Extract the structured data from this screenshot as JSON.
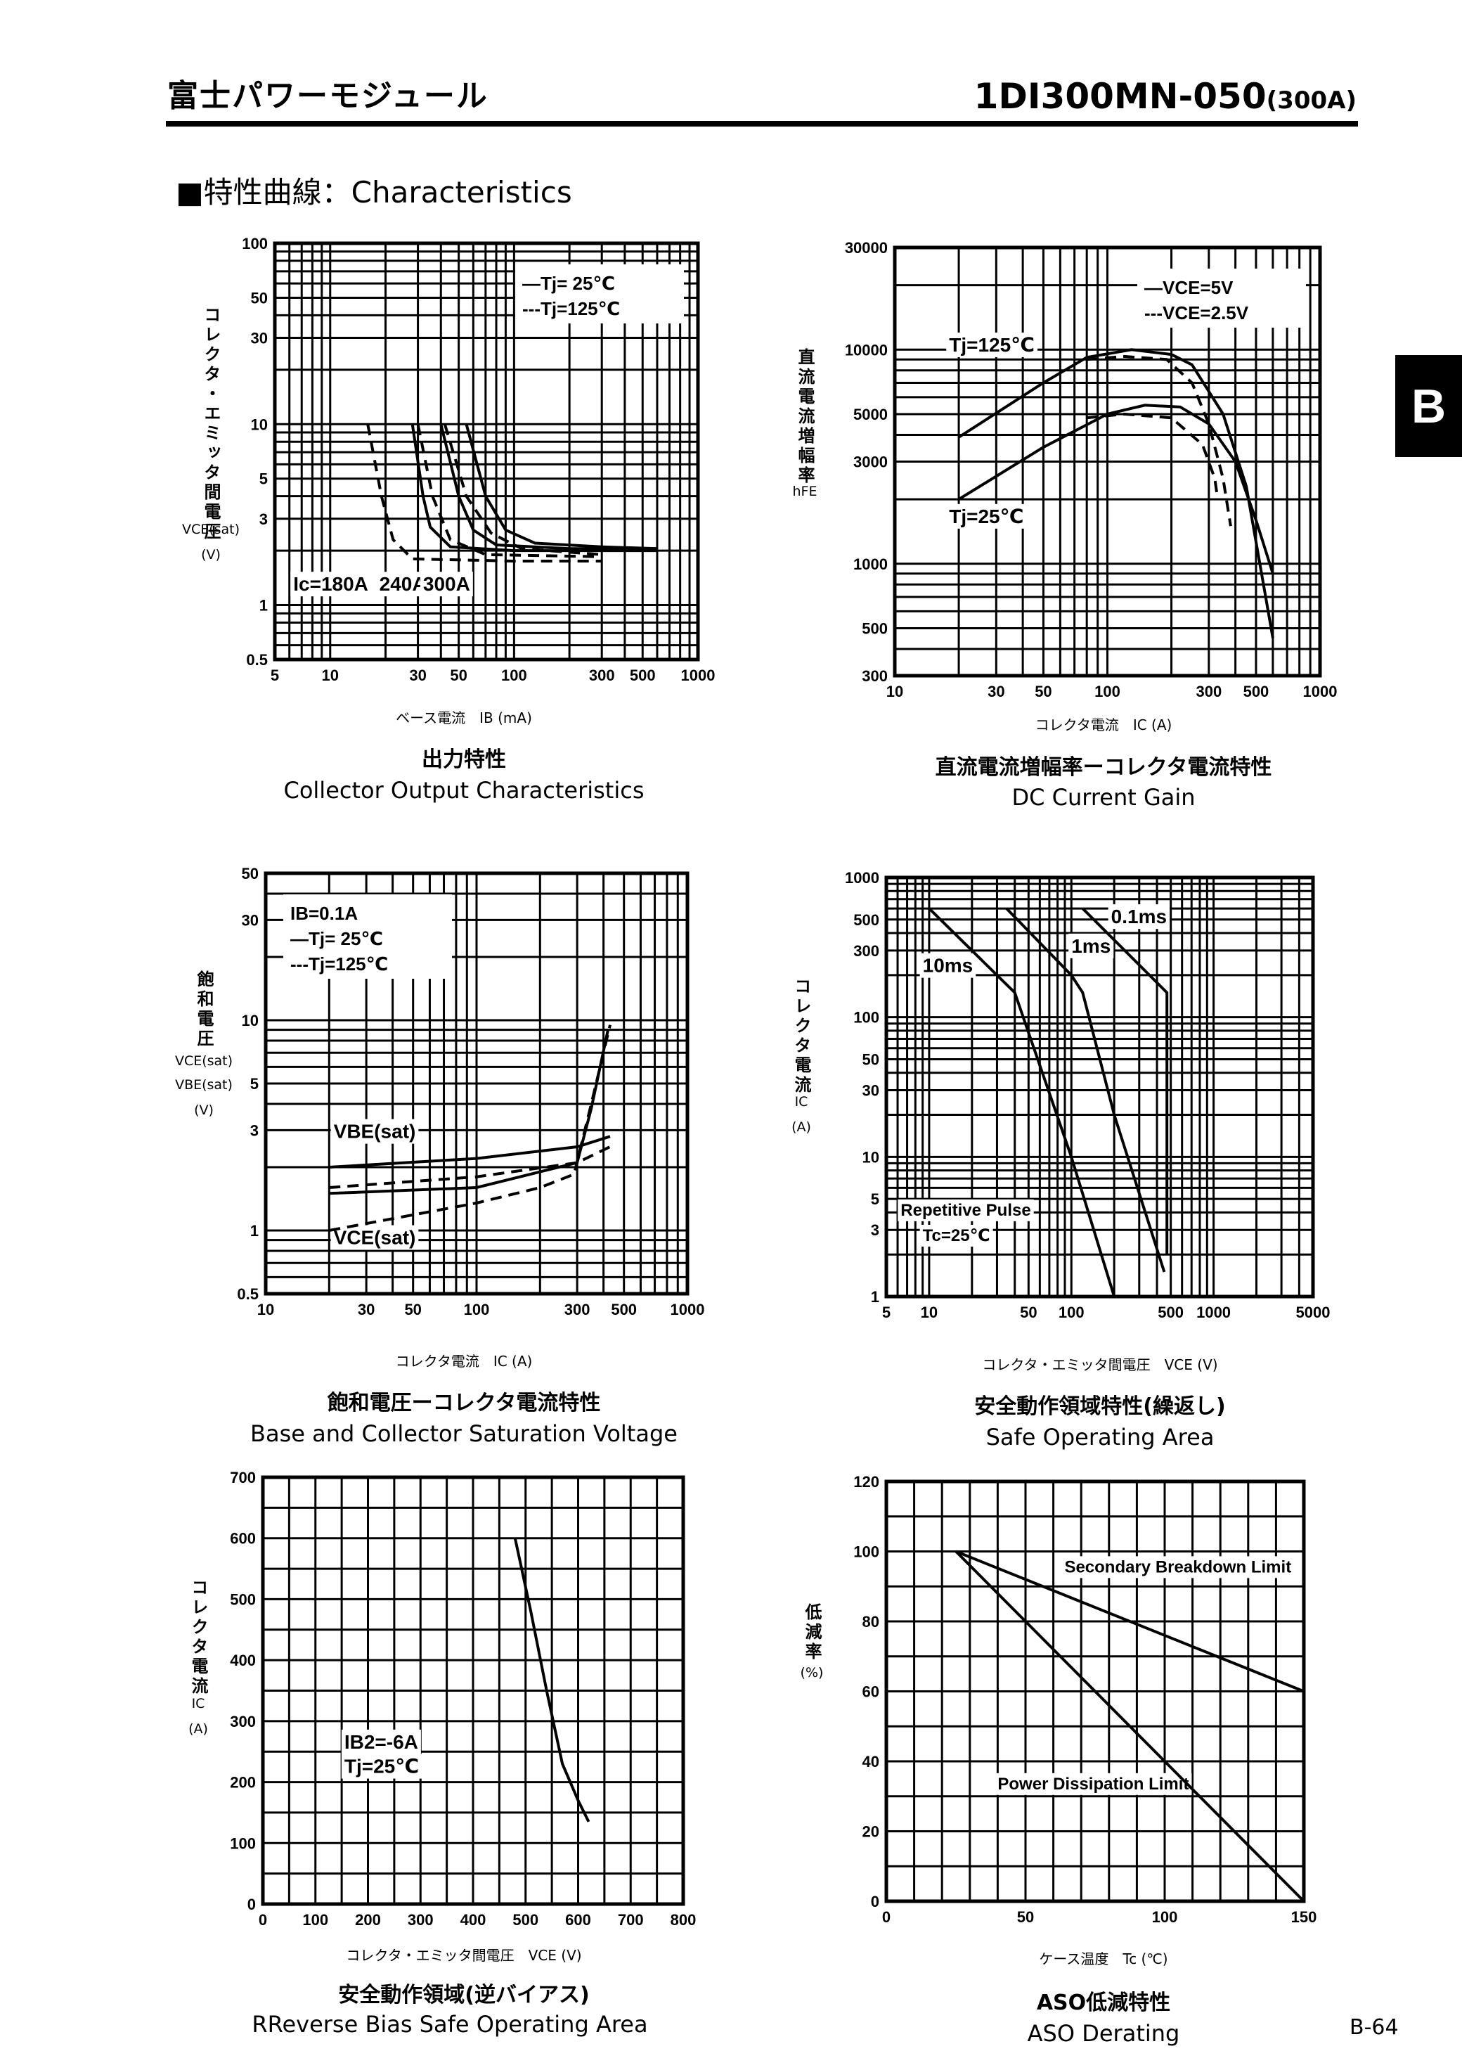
{
  "header": {
    "brand": "富士パワーモジュール",
    "model": "1DI300MN-050",
    "rating": "(300A)"
  },
  "section_title": "■特性曲線：Characteristics",
  "side_tab": "B",
  "page_number": "B-64",
  "chart_data": [
    {
      "type": "line",
      "title_jp": "出力特性",
      "title": "Collector Output Characteristics",
      "xlabel": "ベース電流　IB (mA)",
      "ylabel_jp": "コレクタ・エミッタ間電圧",
      "ylabel_sym": "VCE(sat)",
      "ylabel_unit": "(V)",
      "xscale": "log",
      "yscale": "log",
      "xlim": [
        5,
        1000
      ],
      "ylim": [
        0.5,
        100
      ],
      "grid": true,
      "xticks": [
        5,
        10,
        30,
        50,
        100,
        300,
        500,
        1000
      ],
      "yticks": [
        0.5,
        1,
        3,
        5,
        10,
        30,
        50,
        100
      ],
      "legend": [
        "—Tj= 25℃",
        "---Tj=125℃"
      ],
      "legend_placement": "top-right",
      "annotations": [
        {
          "text": "Ic=180A",
          "x": 6.3,
          "y": 1.2
        },
        {
          "text": "240A",
          "x": 18.5,
          "y": 1.2
        },
        {
          "text": "300A",
          "x": 32,
          "y": 1.2
        }
      ],
      "series": [
        {
          "label": "Ic=180A Tj=25℃",
          "dash": false,
          "points": [
            [
              28,
              10
            ],
            [
              32,
              4
            ],
            [
              35,
              2.7
            ],
            [
              45,
              2.1
            ],
            [
              100,
              2.0
            ],
            [
              600,
              2.0
            ]
          ]
        },
        {
          "label": "Ic=180A Tj=125℃",
          "dash": true,
          "points": [
            [
              16,
              10
            ],
            [
              19,
              4
            ],
            [
              22,
              2.3
            ],
            [
              28,
              1.8
            ],
            [
              100,
              1.75
            ],
            [
              300,
              1.75
            ]
          ]
        },
        {
          "label": "Ic=240A Tj=25℃",
          "dash": false,
          "points": [
            [
              40,
              10
            ],
            [
              50,
              4
            ],
            [
              60,
              2.6
            ],
            [
              80,
              2.15
            ],
            [
              200,
              2.05
            ],
            [
              600,
              2.05
            ]
          ]
        },
        {
          "label": "Ic=240A Tj=125℃",
          "dash": true,
          "points": [
            [
              30,
              10
            ],
            [
              36,
              4
            ],
            [
              45,
              2.3
            ],
            [
              70,
              1.9
            ],
            [
              300,
              1.85
            ]
          ]
        },
        {
          "label": "Ic=300A Tj=25℃",
          "dash": false,
          "points": [
            [
              55,
              10
            ],
            [
              70,
              4
            ],
            [
              90,
              2.6
            ],
            [
              130,
              2.2
            ],
            [
              300,
              2.1
            ],
            [
              600,
              2.05
            ]
          ]
        },
        {
          "label": "Ic=300A Tj=125℃",
          "dash": true,
          "points": [
            [
              42,
              10
            ],
            [
              55,
              4
            ],
            [
              75,
              2.5
            ],
            [
              110,
              2.05
            ],
            [
              300,
              1.9
            ]
          ]
        }
      ]
    },
    {
      "type": "line",
      "title_jp": "直流電流増幅率ーコレクタ電流特性",
      "title": "DC Current Gain",
      "xlabel": "コレクタ電流　IC (A)",
      "ylabel_jp": "直流電流増幅率",
      "ylabel_sym": "hFE",
      "ylabel_unit": "",
      "xscale": "log",
      "yscale": "log",
      "xlim": [
        10,
        1000
      ],
      "ylim": [
        300,
        30000
      ],
      "grid": true,
      "xticks": [
        10,
        30,
        50,
        100,
        300,
        500,
        1000
      ],
      "yticks": [
        300,
        500,
        1000,
        3000,
        5000,
        10000,
        30000
      ],
      "legend": [
        "—VCE=5V",
        "---VCE=2.5V"
      ],
      "legend_placement": "top-right",
      "annotations": [
        {
          "text": "Tj=125℃",
          "x": 18,
          "y": 9800
        },
        {
          "text": "Tj=25℃",
          "x": 18,
          "y": 1550
        }
      ],
      "series": [
        {
          "label": "Tj=125℃ VCE=5V",
          "dash": false,
          "points": [
            [
              20,
              3900
            ],
            [
              50,
              7000
            ],
            [
              80,
              9200
            ],
            [
              130,
              10000
            ],
            [
              200,
              9500
            ],
            [
              250,
              8500
            ],
            [
              350,
              5000
            ],
            [
              450,
              2300
            ],
            [
              600,
              450
            ]
          ]
        },
        {
          "label": "Tj=125℃ VCE=2.5V",
          "dash": true,
          "points": [
            [
              80,
              9000
            ],
            [
              120,
              9300
            ],
            [
              190,
              9000
            ],
            [
              250,
              7000
            ],
            [
              300,
              4500
            ],
            [
              350,
              2500
            ],
            [
              380,
              1500
            ]
          ]
        },
        {
          "label": "Tj=25℃ VCE=5V",
          "dash": false,
          "points": [
            [
              20,
              2000
            ],
            [
              50,
              3500
            ],
            [
              100,
              5000
            ],
            [
              150,
              5500
            ],
            [
              220,
              5400
            ],
            [
              300,
              4500
            ],
            [
              400,
              3000
            ],
            [
              500,
              1600
            ],
            [
              600,
              900
            ]
          ]
        },
        {
          "label": "Tj=25℃ VCE=2.5V",
          "dash": true,
          "points": [
            [
              80,
              4800
            ],
            [
              120,
              5000
            ],
            [
              200,
              4800
            ],
            [
              280,
              3600
            ],
            [
              320,
              2500
            ],
            [
              330,
              2000
            ]
          ]
        }
      ]
    },
    {
      "type": "line",
      "title_jp": "飽和電圧ーコレクタ電流特性",
      "title": "Base and Collector Saturation Voltage",
      "xlabel": "コレクタ電流　IC (A)",
      "ylabel_jp": "飽和電圧",
      "ylabel_sym": "VCE(sat)",
      "ylabel_sym2": "VBE(sat)",
      "ylabel_unit": "(V)",
      "xscale": "log",
      "yscale": "log",
      "xlim": [
        10,
        1000
      ],
      "ylim": [
        0.5,
        50
      ],
      "grid": true,
      "xticks": [
        10,
        30,
        50,
        100,
        300,
        500,
        1000
      ],
      "yticks": [
        0.5,
        1,
        3,
        5,
        10,
        30,
        50
      ],
      "legend": [
        "IB=0.1A",
        "—Tj= 25℃",
        "---Tj=125℃"
      ],
      "legend_placement": "top-left",
      "annotations": [
        {
          "text": "VBE(sat)",
          "x": 21,
          "y": 2.75
        },
        {
          "text": "VCE(sat)",
          "x": 21,
          "y": 0.86
        }
      ],
      "series": [
        {
          "label": "VBE(sat) Tj=25℃",
          "dash": false,
          "points": [
            [
              20,
              2.0
            ],
            [
              100,
              2.2
            ],
            [
              300,
              2.5
            ],
            [
              430,
              2.8
            ]
          ]
        },
        {
          "label": "VBE(sat) Tj=125℃",
          "dash": true,
          "points": [
            [
              20,
              1.6
            ],
            [
              100,
              1.8
            ],
            [
              300,
              2.1
            ],
            [
              430,
              2.5
            ]
          ]
        },
        {
          "label": "VCE(sat) Tj=25℃",
          "dash": false,
          "points": [
            [
              20,
              1.5
            ],
            [
              100,
              1.6
            ],
            [
              200,
              1.9
            ],
            [
              300,
              2.1
            ],
            [
              350,
              3.8
            ],
            [
              420,
              9
            ]
          ]
        },
        {
          "label": "VCE(sat) Tj=125℃",
          "dash": true,
          "points": [
            [
              20,
              1.0
            ],
            [
              100,
              1.35
            ],
            [
              200,
              1.6
            ],
            [
              290,
              1.85
            ],
            [
              350,
              4
            ],
            [
              430,
              9.5
            ]
          ]
        }
      ]
    },
    {
      "type": "line",
      "title_jp": "安全動作領域特性(繰返し)",
      "title": "Safe Operating Area",
      "xlabel": "コレクタ・エミッタ間電圧　VCE (V)",
      "ylabel_jp": "コレクタ電流",
      "ylabel_sym": "IC",
      "ylabel_unit": "(A)",
      "xscale": "log",
      "yscale": "log",
      "xlim": [
        5,
        5000
      ],
      "ylim": [
        1,
        1000
      ],
      "grid": true,
      "xticks": [
        5,
        10,
        50,
        100,
        500,
        1000,
        5000
      ],
      "yticks": [
        1,
        3,
        5,
        10,
        30,
        50,
        100,
        300,
        500,
        1000
      ],
      "annotations": [
        {
          "text": "0.1ms",
          "x": 190,
          "y": 470
        },
        {
          "text": "1ms",
          "x": 100,
          "y": 290
        },
        {
          "text": "10ms",
          "x": 9,
          "y": 210
        },
        {
          "text": "Repetitive Pulse",
          "x": 6.3,
          "y": 3.8
        },
        {
          "text": "Tc=25℃",
          "x": 9,
          "y": 2.5
        }
      ],
      "series": [
        {
          "label": "10ms",
          "dash": false,
          "points": [
            [
              10,
              600
            ],
            [
              30,
              200
            ],
            [
              40,
              150
            ],
            [
              100,
              10
            ],
            [
              200,
              1
            ]
          ]
        },
        {
          "label": "1ms",
          "dash": false,
          "points": [
            [
              35,
              600
            ],
            [
              100,
              200
            ],
            [
              120,
              150
            ],
            [
              200,
              20
            ],
            [
              450,
              1.5
            ]
          ]
        },
        {
          "label": "0.1ms",
          "dash": false,
          "points": [
            [
              120,
              600
            ],
            [
              470,
              150
            ],
            [
              470,
              2
            ]
          ]
        }
      ]
    },
    {
      "type": "line",
      "title_jp": "安全動作領域(逆バイアス)",
      "title": "RReverse Bias Safe Operating Area",
      "xlabel": "コレクタ・エミッタ間電圧　VCE (V)",
      "ylabel_jp": "コレクタ電流",
      "ylabel_sym": "IC",
      "ylabel_unit": "(A)",
      "xscale": "linear",
      "yscale": "linear",
      "xlim": [
        0,
        800
      ],
      "ylim": [
        0,
        700
      ],
      "grid": true,
      "xticks": [
        0,
        100,
        200,
        300,
        400,
        500,
        600,
        700,
        800
      ],
      "yticks": [
        0,
        100,
        200,
        300,
        400,
        500,
        600,
        700
      ],
      "annotations": [
        {
          "text": "IB2=-6A",
          "x": 155,
          "y": 255
        },
        {
          "text": "Tj=25℃",
          "x": 155,
          "y": 215
        }
      ],
      "series": [
        {
          "label": "RBSOA",
          "dash": false,
          "points": [
            [
              480,
              600
            ],
            [
              510,
              480
            ],
            [
              540,
              350
            ],
            [
              570,
              230
            ],
            [
              600,
              170
            ],
            [
              620,
              135
            ]
          ]
        }
      ]
    },
    {
      "type": "line",
      "title_jp": "ASO低減特性",
      "title": "ASO Derating",
      "xlabel": "ケース温度　Tc (℃)",
      "ylabel_jp": "低減率",
      "ylabel_sym": "",
      "ylabel_unit": "(%)",
      "xscale": "linear",
      "yscale": "linear",
      "xlim": [
        0,
        150
      ],
      "ylim": [
        0,
        120
      ],
      "grid": true,
      "xticks": [
        0,
        50,
        100,
        150
      ],
      "yticks": [
        0,
        20,
        40,
        60,
        80,
        100,
        120
      ],
      "annotations": [
        {
          "text": "Secondary Breakdown Limit",
          "x": 64,
          "y": 94
        },
        {
          "text": "Power Dissipation Limit",
          "x": 40,
          "y": 32
        }
      ],
      "series": [
        {
          "label": "Secondary Breakdown Limit",
          "dash": false,
          "points": [
            [
              25,
              100
            ],
            [
              150,
              60
            ]
          ]
        },
        {
          "label": "Power Dissipation Limit",
          "dash": false,
          "points": [
            [
              25,
              100
            ],
            [
              150,
              0
            ]
          ]
        }
      ]
    }
  ]
}
